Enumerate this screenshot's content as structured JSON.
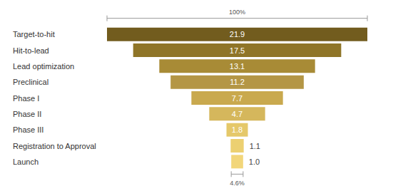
{
  "chart_data": {
    "type": "funnel",
    "categories": [
      "Target-to-hit",
      "Hit-to-lead",
      "Lead optimization",
      "Preclinical",
      "Phase I",
      "Phase II",
      "Phase III",
      "Registration to Approval",
      "Launch"
    ],
    "values": [
      21.9,
      17.5,
      13.1,
      11.2,
      7.7,
      4.7,
      1.8,
      1.1,
      1.0
    ],
    "value_labels": [
      "21.9",
      "17.5",
      "13.1",
      "11.2",
      "7.7",
      "4.7",
      "1.8",
      "1.1",
      "1.0"
    ],
    "colors": [
      "#725c1e",
      "#8f7528",
      "#a88b36",
      "#b49645",
      "#c9a94e",
      "#d5b75c",
      "#e5c869",
      "#ecd071",
      "#f2d67a"
    ],
    "data_labels": true,
    "tick_labels": "y",
    "annotations": [
      {
        "text": "100%",
        "category": "Target-to-hit"
      },
      {
        "text": "4.6%",
        "category": "Launch"
      }
    ]
  }
}
